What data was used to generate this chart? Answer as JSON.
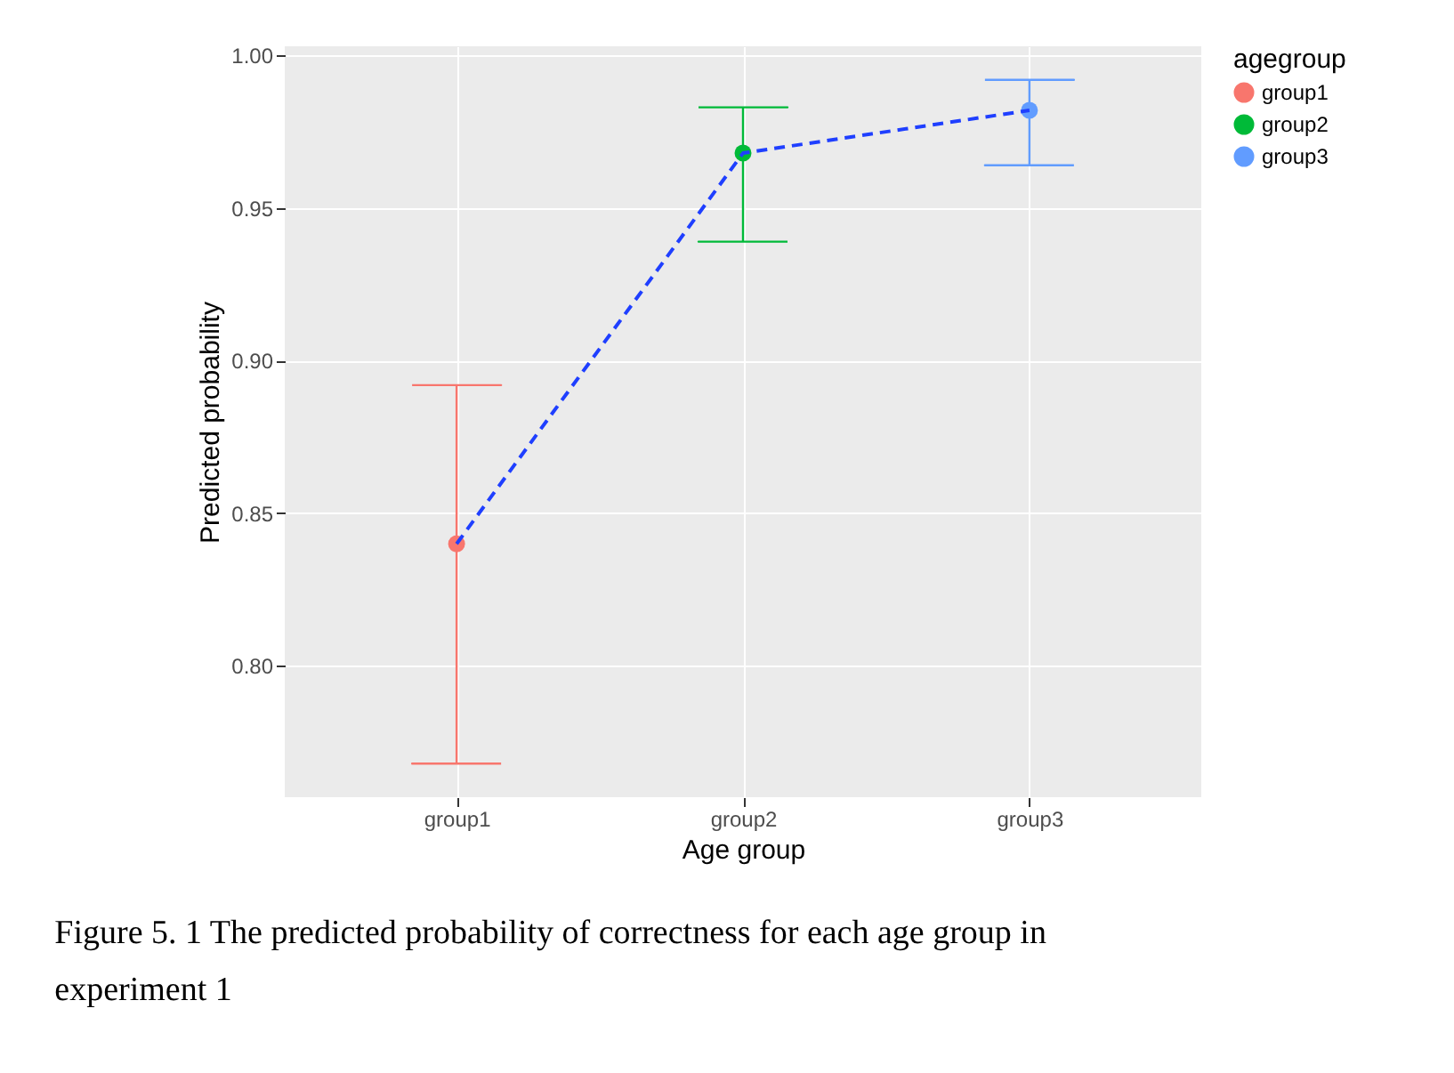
{
  "chart_data": {
    "type": "scatter",
    "xlabel": "Age group",
    "ylabel": "Predicted probability",
    "legend_title": "agegroup",
    "legend": "right",
    "grid": true,
    "marker": "circle",
    "categories": [
      "group1",
      "group2",
      "group3"
    ],
    "ylim": [
      0.757,
      1.003
    ],
    "yticks": [
      {
        "value": 0.8,
        "label": "0.80"
      },
      {
        "value": 0.85,
        "label": "0.85"
      },
      {
        "value": 0.9,
        "label": "0.90"
      },
      {
        "value": 0.95,
        "label": "0.95"
      },
      {
        "value": 1.0,
        "label": "1.00"
      }
    ],
    "series": [
      {
        "type": "line",
        "color": "#1f3fff",
        "line_style": "dashed",
        "marker": "none",
        "values": [
          0.84,
          0.968,
          0.982
        ]
      },
      {
        "name": "group1",
        "color": "#f8766d",
        "values": [
          0.84,
          null,
          null
        ],
        "errors": [
          [
            0.768,
            0.892
          ],
          null,
          null
        ]
      },
      {
        "name": "group2",
        "color": "#00ba38",
        "values": [
          null,
          0.968,
          null
        ],
        "errors": [
          null,
          [
            0.939,
            0.983
          ],
          null
        ]
      },
      {
        "name": "group3",
        "color": "#619cff",
        "values": [
          null,
          null,
          0.982
        ],
        "errors": [
          null,
          null,
          [
            0.964,
            0.992
          ]
        ]
      }
    ],
    "annotations": [
      "Figure 5. 1 The predicted probability of correctness for each age group in experiment 1"
    ]
  }
}
